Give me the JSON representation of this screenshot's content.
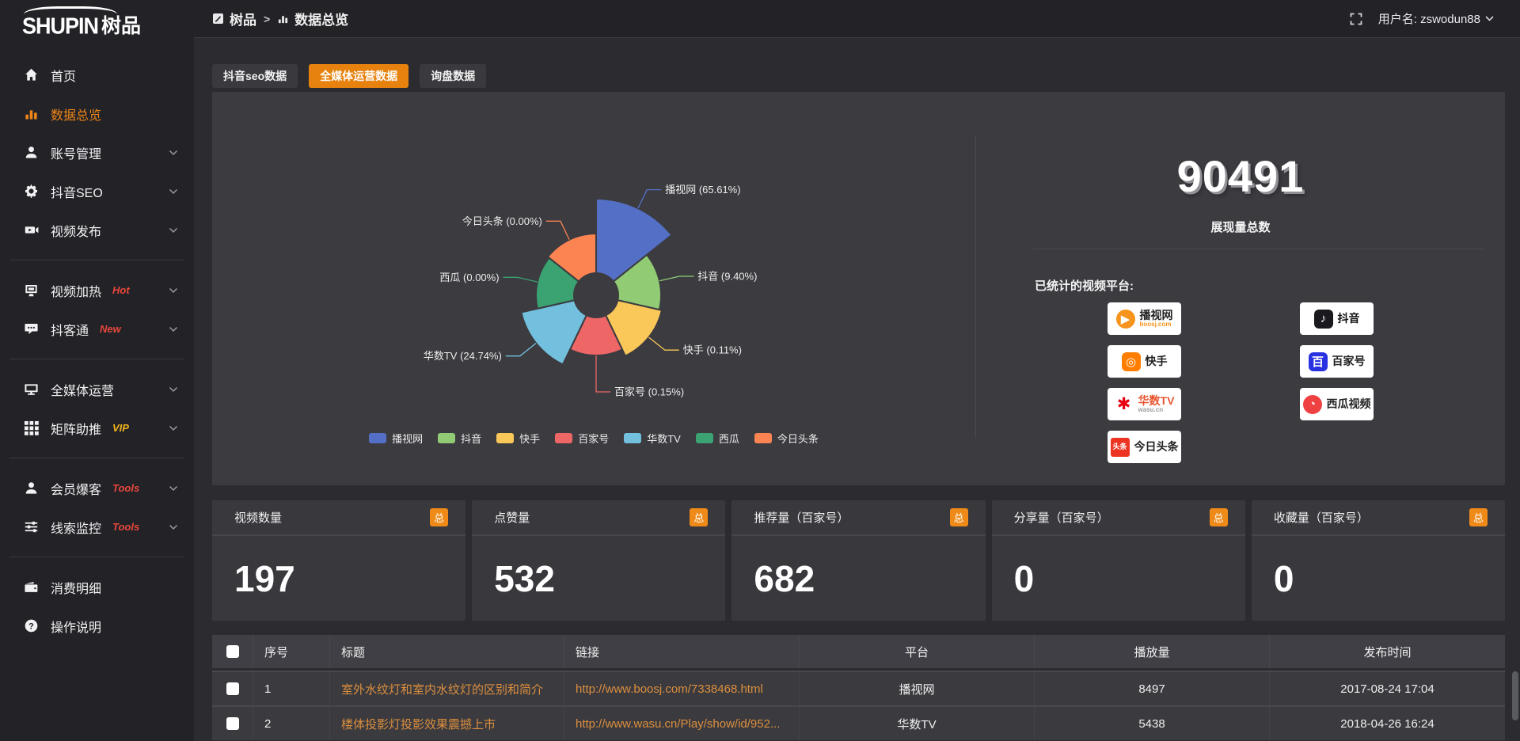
{
  "logo": {
    "en": "SHUPIN",
    "cn": "树品"
  },
  "topbar": {
    "breadcrumb": [
      {
        "label": "树品",
        "icon": "edit-board-icon"
      },
      {
        "label": "数据总览",
        "icon": "bar-chart-icon"
      }
    ],
    "separator": ">",
    "username": "用户名: zswodun88"
  },
  "sidebar": {
    "items": [
      {
        "label": "首页",
        "icon": "home"
      },
      {
        "label": "数据总览",
        "icon": "chart",
        "active": true
      },
      {
        "label": "账号管理",
        "icon": "user",
        "expandable": true
      },
      {
        "label": "抖音SEO",
        "icon": "gear",
        "expandable": true
      },
      {
        "label": "视频发布",
        "icon": "video",
        "expandable": true,
        "divider_after": true
      },
      {
        "label": "视频加热",
        "icon": "heat",
        "badge": "Hot",
        "badge_color": "#e8463c",
        "expandable": true
      },
      {
        "label": "抖客通",
        "icon": "chat",
        "badge": "New",
        "badge_color": "#e8463c",
        "expandable": true,
        "divider_after": true
      },
      {
        "label": "全媒体运营",
        "icon": "monitor",
        "expandable": true
      },
      {
        "label": "矩阵助推",
        "icon": "grid",
        "badge": "VIP",
        "badge_color": "#efb41a",
        "expandable": true,
        "divider_after": true
      },
      {
        "label": "会员爆客",
        "icon": "member",
        "badge": "Tools",
        "badge_color": "#e8463c",
        "expandable": true
      },
      {
        "label": "线索监控",
        "icon": "sliders",
        "badge": "Tools",
        "badge_color": "#e8463c",
        "expandable": true,
        "divider_after": true
      },
      {
        "label": "消费明细",
        "icon": "wallet"
      },
      {
        "label": "操作说明",
        "icon": "help"
      }
    ]
  },
  "tabs": [
    {
      "label": "抖音seo数据",
      "active": false
    },
    {
      "label": "全媒体运营数据",
      "active": true
    },
    {
      "label": "询盘数据",
      "active": false
    }
  ],
  "chart_data": {
    "type": "pie",
    "variant": "nightingale-rose",
    "equal_angles": true,
    "start_angle_deg": 0,
    "inner_radius": 28,
    "label_format": "{name} ({percent}%)",
    "legend_position": "bottom",
    "slices": [
      {
        "name": "播视网",
        "percent": 65.61,
        "color": "#5470c6",
        "display_radius": 122
      },
      {
        "name": "抖音",
        "percent": 9.4,
        "color": "#91cc75",
        "display_radius": 82
      },
      {
        "name": "快手",
        "percent": 0.11,
        "color": "#fac858",
        "display_radius": 85
      },
      {
        "name": "百家号",
        "percent": 0.15,
        "color": "#ee6666",
        "display_radius": 76
      },
      {
        "name": "华数TV",
        "percent": 24.74,
        "color": "#73c0de",
        "display_radius": 97
      },
      {
        "name": "西瓜",
        "percent": 0.0,
        "color": "#3ba272",
        "display_radius": 76
      },
      {
        "name": "今日头条",
        "percent": 0.0,
        "color": "#fc8452",
        "display_radius": 78
      }
    ]
  },
  "summary": {
    "total_value": "90491",
    "total_label": "展现量总数",
    "platforms_title": "已统计的视频平台:",
    "platform_columns": [
      [
        {
          "name": "播视网",
          "sub": "boosj.com",
          "icon_char": "▶",
          "icon_shape": "circle",
          "icon_bg": "#f7941d",
          "icon_color": "#fff",
          "name_color": "#222222",
          "sub_color": "#f7941d"
        },
        {
          "name": "快手",
          "icon_char": "◎",
          "icon_shape": "rounded",
          "icon_bg": "#ff7e00",
          "icon_color": "#fff",
          "name_color": "#222222"
        },
        {
          "name": "华数TV",
          "sub": "wasu.cn",
          "icon_char": "✱",
          "icon_shape": "plain",
          "icon_bg": "#ffffff",
          "icon_color": "#e60012",
          "name_color": "#e8542e",
          "sub_color": "#9a9a9a"
        },
        {
          "name": "今日头条",
          "icon_char": "头条",
          "icon_shape": "square",
          "icon_bg": "#ed3321",
          "icon_color": "#fff",
          "name_color": "#222222"
        }
      ],
      [
        {
          "name": "抖音",
          "icon_char": "♪",
          "icon_shape": "rounded",
          "icon_bg": "#1a1a1e",
          "icon_color": "#fff",
          "name_color": "#111111"
        },
        {
          "name": "百家号",
          "icon_char": "百",
          "icon_shape": "rounded",
          "icon_bg": "#2932e1",
          "icon_color": "#fff",
          "name_color": "#222222"
        },
        {
          "name": "西瓜视频",
          "icon_char": "◔",
          "icon_shape": "circle",
          "icon_bg": "#f04142",
          "icon_color": "#fff",
          "name_color": "#222222"
        }
      ]
    ]
  },
  "stat_cards": [
    {
      "label": "视频数量",
      "badge": "总",
      "value": "197"
    },
    {
      "label": "点赞量",
      "badge": "总",
      "value": "532"
    },
    {
      "label": "推荐量（百家号）",
      "badge": "总",
      "value": "682"
    },
    {
      "label": "分享量（百家号）",
      "badge": "总",
      "value": "0"
    },
    {
      "label": "收藏量（百家号）",
      "badge": "总",
      "value": "0"
    }
  ],
  "table": {
    "columns": [
      {
        "key": "check",
        "label": ""
      },
      {
        "key": "index",
        "label": "序号"
      },
      {
        "key": "title",
        "label": "标题"
      },
      {
        "key": "link",
        "label": "链接"
      },
      {
        "key": "platform",
        "label": "平台"
      },
      {
        "key": "views",
        "label": "播放量"
      },
      {
        "key": "time",
        "label": "发布时间"
      }
    ],
    "rows": [
      {
        "index": "1",
        "title": "室外水纹灯和室内水纹灯的区别和简介",
        "link": "http://www.boosj.com/7338468.html",
        "platform": "播视网",
        "views": "8497",
        "time": "2017-08-24 17:04"
      },
      {
        "index": "2",
        "title": "楼体投影灯投影效果震撼上市",
        "link": "http://www.wasu.cn/Play/show/id/952...",
        "platform": "华数TV",
        "views": "5438",
        "time": "2018-04-26 16:24"
      }
    ]
  }
}
